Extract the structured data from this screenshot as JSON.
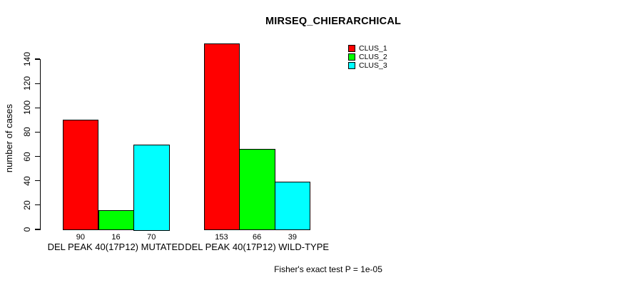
{
  "chart_data": {
    "type": "bar",
    "title": "MIRSEQ_CHIERARCHICAL",
    "ylabel": "number of cases",
    "xlabel": "",
    "ylim": [
      0,
      140
    ],
    "yticks": [
      0,
      20,
      40,
      60,
      80,
      100,
      120,
      140
    ],
    "grid": false,
    "legend_position": "top-right",
    "categories": [
      "DEL PEAK 40(17P12) MUTATED",
      "DEL PEAK 40(17P12) WILD-TYPE"
    ],
    "series": [
      {
        "name": "CLUS_1",
        "color": "#ff0000",
        "values": [
          90,
          153
        ]
      },
      {
        "name": "CLUS_2",
        "color": "#00ff00",
        "values": [
          16,
          66
        ]
      },
      {
        "name": "CLUS_3",
        "color": "#00ffff",
        "values": [
          70,
          39
        ]
      }
    ],
    "bar_value_labels_shown": true,
    "annotation": "Fisher's exact test P = 1e-05"
  }
}
